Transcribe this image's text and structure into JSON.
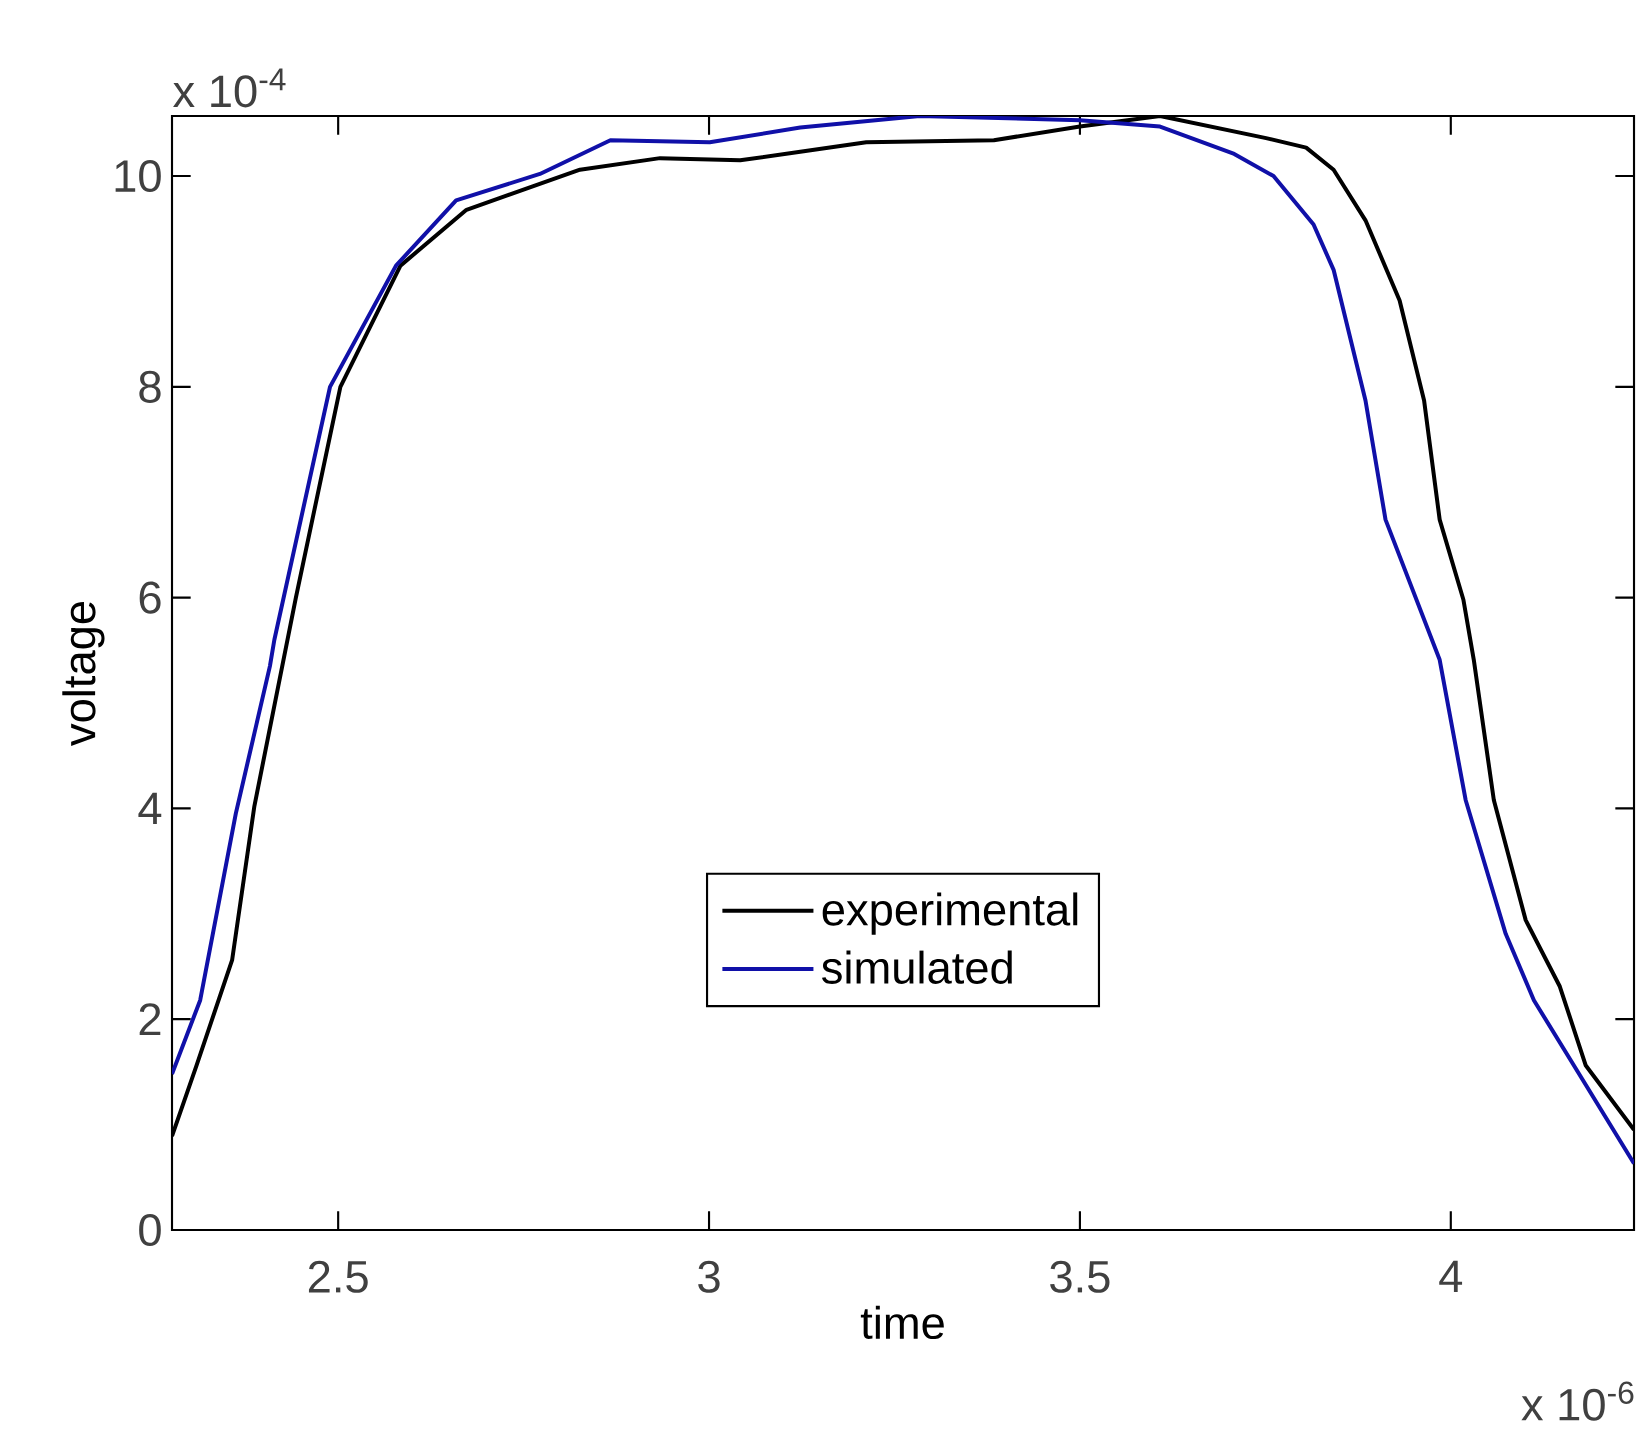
{
  "chart_data": {
    "type": "line",
    "xlabel": "time",
    "ylabel": "voltage",
    "annotations": [
      "x 10$^{-4}$",
      "x 10$^{-6}$"
    ],
    "xlim": [
      2.276,
      4.247
    ],
    "ylim": [
      0,
      10.57
    ],
    "xticks": [
      2.5,
      3,
      3.5,
      4
    ],
    "yticks": [
      0,
      2,
      4,
      6,
      8,
      10
    ],
    "grid": false,
    "legend": "bottom",
    "marker": "none",
    "line_style": "solid",
    "series": [
      {
        "name": "experimental",
        "color": "#000000",
        "x": [
          2.276,
          2.309,
          2.357,
          2.387,
          2.443,
          2.503,
          2.584,
          2.673,
          2.826,
          2.934,
          3.042,
          3.123,
          3.212,
          3.384,
          3.5,
          3.608,
          3.751,
          3.805,
          3.842,
          3.885,
          3.931,
          3.964,
          3.985,
          4.017,
          4.031,
          4.058,
          4.101,
          4.147,
          4.182,
          4.247
        ],
        "values": [
          0.89,
          1.56,
          2.56,
          4.02,
          6.0,
          8.0,
          9.15,
          9.68,
          10.06,
          10.17,
          10.15,
          10.23,
          10.32,
          10.34,
          10.47,
          10.57,
          10.36,
          10.27,
          10.06,
          9.58,
          8.82,
          7.87,
          6.74,
          5.98,
          5.41,
          4.08,
          2.94,
          2.31,
          1.56,
          0.95
        ]
      },
      {
        "name": "simulated",
        "color": "#1010a8",
        "x": [
          2.276,
          2.314,
          2.362,
          2.408,
          2.414,
          2.489,
          2.578,
          2.659,
          2.772,
          2.867,
          3.001,
          3.123,
          3.284,
          3.5,
          3.608,
          3.708,
          3.761,
          3.815,
          3.842,
          3.885,
          3.912,
          3.985,
          4.02,
          4.074,
          4.112,
          4.166,
          4.247
        ],
        "values": [
          1.48,
          2.18,
          3.95,
          5.35,
          5.6,
          8.0,
          9.15,
          9.77,
          10.02,
          10.34,
          10.32,
          10.46,
          10.57,
          10.53,
          10.47,
          10.21,
          10.0,
          9.54,
          9.11,
          7.87,
          6.74,
          5.41,
          4.08,
          2.81,
          2.18,
          1.56,
          0.63
        ]
      }
    ]
  }
}
